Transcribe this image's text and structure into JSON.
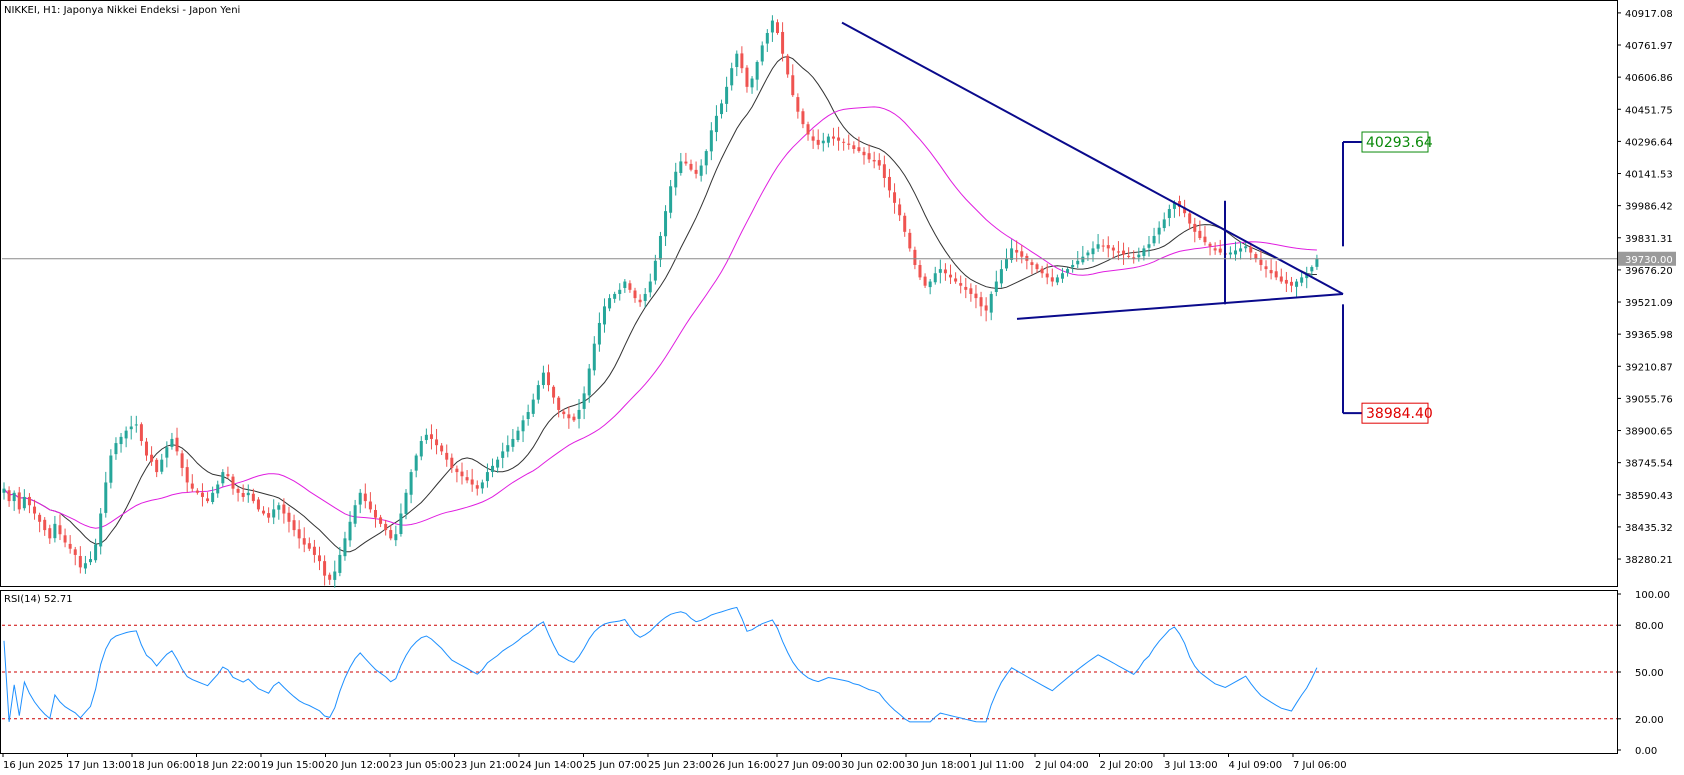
{
  "header": {
    "title": "NIKKEI, H1:  Japonya Nikkei Endeksi - Japon Yeni"
  },
  "colors": {
    "background": "#ffffff",
    "bull": "#26a69a",
    "bear": "#ef5350",
    "ma_fast": "#333333",
    "ma_slow": "#e01ee0",
    "trendline": "#0a0a8c",
    "rsi": "#1e90ff",
    "rsi_levels": "#cc0000",
    "target_up": "#0a8a0a",
    "target_down": "#e00000"
  },
  "chart_data": [
    {
      "type": "candlestick",
      "symbol": "NIKKEI",
      "timeframe": "H1",
      "ylim": [
        38150,
        40960
      ],
      "y_ticks": [
        "40917.08",
        "40761.97",
        "40606.86",
        "40451.75",
        "40296.64",
        "40141.53",
        "39986.42",
        "39831.31",
        "39676.20",
        "39521.09",
        "39365.98",
        "39210.87",
        "39055.76",
        "38900.65",
        "38745.54",
        "38590.43",
        "38435.32",
        "38280.21"
      ],
      "x_ticks": [
        "16 Jun 2025",
        "17 Jun 13:00",
        "18 Jun 06:00",
        "18 Jun 22:00",
        "19 Jun 15:00",
        "20 Jun 12:00",
        "23 Jun 05:00",
        "23 Jun 21:00",
        "24 Jun 14:00",
        "25 Jun 07:00",
        "25 Jun 23:00",
        "26 Jun 16:00",
        "27 Jun 09:00",
        "30 Jun 02:00",
        "30 Jun 18:00",
        "1 Jul 11:00",
        "2 Jul 04:00",
        "2 Jul 20:00",
        "3 Jul 13:00",
        "4 Jul 09:00",
        "7 Jul 06:00"
      ],
      "current_price": "39730.00",
      "close_series": [
        38620,
        38560,
        38600,
        38520,
        38580,
        38540,
        38500,
        38460,
        38420,
        38380,
        38450,
        38400,
        38360,
        38330,
        38300,
        38240,
        38260,
        38280,
        38350,
        38500,
        38650,
        38780,
        38840,
        38870,
        38900,
        38920,
        38930,
        38850,
        38780,
        38750,
        38700,
        38760,
        38820,
        38860,
        38800,
        38720,
        38650,
        38620,
        38600,
        38580,
        38560,
        38600,
        38640,
        38700,
        38680,
        38620,
        38600,
        38580,
        38600,
        38560,
        38520,
        38500,
        38480,
        38520,
        38540,
        38500,
        38460,
        38420,
        38380,
        38350,
        38330,
        38300,
        38270,
        38200,
        38180,
        38220,
        38300,
        38380,
        38460,
        38540,
        38600,
        38560,
        38520,
        38480,
        38450,
        38420,
        38380,
        38400,
        38500,
        38600,
        38700,
        38780,
        38850,
        38880,
        38860,
        38830,
        38800,
        38760,
        38720,
        38700,
        38680,
        38660,
        38640,
        38620,
        38650,
        38700,
        38730,
        38760,
        38800,
        38830,
        38860,
        38900,
        38950,
        38990,
        39050,
        39120,
        39180,
        39120,
        39060,
        39000,
        38980,
        38960,
        38950,
        39000,
        39080,
        39200,
        39320,
        39420,
        39500,
        39540,
        39560,
        39580,
        39620,
        39580,
        39540,
        39520,
        39560,
        39620,
        39720,
        39840,
        39960,
        40080,
        40150,
        40200,
        40190,
        40160,
        40140,
        40180,
        40250,
        40350,
        40420,
        40480,
        40560,
        40650,
        40720,
        40650,
        40560,
        40600,
        40680,
        40760,
        40820,
        40880,
        40820,
        40720,
        40620,
        40520,
        40440,
        40380,
        40330,
        40300,
        40280,
        40300,
        40320,
        40310,
        40300,
        40290,
        40280,
        40260,
        40250,
        40230,
        40210,
        40200,
        40180,
        40120,
        40060,
        40000,
        39940,
        39860,
        39780,
        39700,
        39640,
        39600,
        39620,
        39660,
        39680,
        39660,
        39640,
        39620,
        39600,
        39580,
        39560,
        39540,
        39500,
        39480,
        39560,
        39620,
        39680,
        39730,
        39780,
        39760,
        39740,
        39720,
        39700,
        39680,
        39660,
        39640,
        39620,
        39640,
        39660,
        39680,
        39700,
        39720,
        39740,
        39760,
        39780,
        39800,
        39790,
        39780,
        39770,
        39760,
        39750,
        39740,
        39730,
        39750,
        39780,
        39800,
        39840,
        39880,
        39920,
        39970,
        40000,
        39980,
        39950,
        39900,
        39860,
        39830,
        39810,
        39790,
        39770,
        39760,
        39750,
        39760,
        39770,
        39780,
        39790,
        39760,
        39730,
        39700,
        39680,
        39660,
        39640,
        39620,
        39610,
        39600,
        39620,
        39640,
        39660,
        39690,
        39730
      ],
      "annotations": {
        "target_up": "40293.64",
        "target_down": "38984.40"
      }
    },
    {
      "type": "line",
      "title": "RSI(14) 52.71",
      "ylim": [
        0,
        100
      ],
      "y_ticks": [
        "100.00",
        "80.00",
        "50.00",
        "20.00",
        "0.00"
      ],
      "levels": [
        80,
        50,
        20
      ]
    }
  ]
}
